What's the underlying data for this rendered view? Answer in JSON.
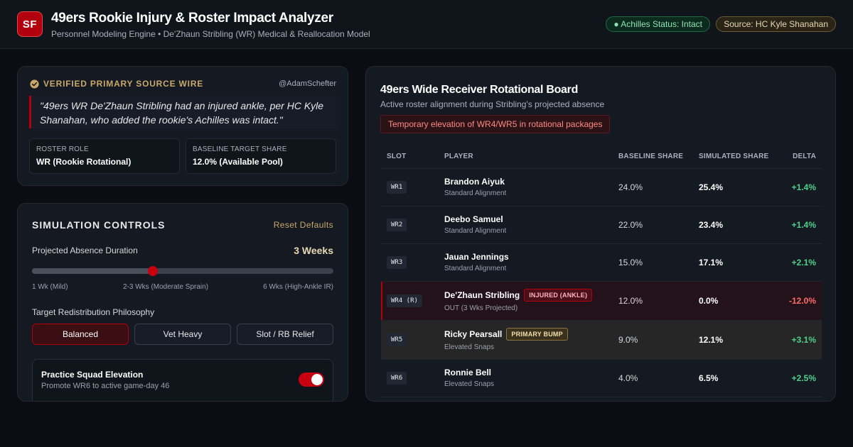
{
  "header": {
    "logo_text": "SF",
    "title": "49ers Rookie Injury & Roster Impact Analyzer",
    "subtitle": "Personnel Modeling Engine • De'Zhaun Stribling (WR) Medical & Reallocation Model",
    "status_pill": "● Achilles Status: Intact",
    "source_pill": "Source: HC Kyle Shanahan"
  },
  "wire": {
    "label": "VERIFIED PRIMARY SOURCE WIRE",
    "handle": "@AdamSchefter",
    "quote": "\"49ers WR De'Zhaun Stribling had an injured ankle, per HC Kyle Shanahan, who added the rookie's Achilles was intact.\"",
    "roster_role_label": "ROSTER ROLE",
    "roster_role_value": "WR (Rookie Rotational)",
    "target_share_label": "BASELINE TARGET SHARE",
    "target_share_value": "12.0% (Available Pool)"
  },
  "sim": {
    "title": "SIMULATION CONTROLS",
    "reset_label": "Reset Defaults",
    "duration_label": "Projected Absence Duration",
    "duration_value": "3 Weeks",
    "duration_weeks": 3,
    "duration_min": 1,
    "duration_max": 6,
    "tick_min": "1 Wk (Mild)",
    "tick_mid": "2-3 Wks (Moderate Sprain)",
    "tick_max": "6 Wks (High-Ankle IR)",
    "philosophy_label": "Target Redistribution Philosophy",
    "options": [
      "Balanced",
      "Vet Heavy",
      "Slot / RB Relief"
    ],
    "selected_option": "Balanced",
    "squad_title": "Practice Squad Elevation",
    "squad_desc": "Promote WR6 to active game-day 46",
    "squad_enabled": true
  },
  "board": {
    "title": "49ers Wide Receiver Rotational Board",
    "subtitle": "Active roster alignment during Stribling's projected absence",
    "alert": "Temporary elevation of WR4/WR5 in rotational packages",
    "columns": [
      "SLOT",
      "PLAYER",
      "BASELINE SHARE",
      "SIMULATED SHARE",
      "DELTA"
    ],
    "rows": [
      {
        "slot": "WR1",
        "player": "Brandon Aiyuk",
        "note": "Standard Alignment",
        "badge": "",
        "baseline": "24.0%",
        "simulated": "25.4%",
        "delta": "+1.4%"
      },
      {
        "slot": "WR2",
        "player": "Deebo Samuel",
        "note": "Standard Alignment",
        "badge": "",
        "baseline": "22.0%",
        "simulated": "23.4%",
        "delta": "+1.4%"
      },
      {
        "slot": "WR3",
        "player": "Jauan Jennings",
        "note": "Standard Alignment",
        "badge": "",
        "baseline": "15.0%",
        "simulated": "17.1%",
        "delta": "+2.1%"
      },
      {
        "slot": "WR4 (R)",
        "player": "De'Zhaun Stribling",
        "note": "OUT (3 Wks Projected)",
        "badge": "INJURED (ANKLE)",
        "baseline": "12.0%",
        "simulated": "0.0%",
        "delta": "-12.0%"
      },
      {
        "slot": "WR5",
        "player": "Ricky Pearsall",
        "note": "Elevated Snaps",
        "badge": "PRIMARY BUMP",
        "baseline": "9.0%",
        "simulated": "12.1%",
        "delta": "+3.1%"
      },
      {
        "slot": "WR6",
        "player": "Ronnie Bell",
        "note": "Elevated Snaps",
        "badge": "",
        "baseline": "4.0%",
        "simulated": "6.5%",
        "delta": "+2.5%"
      }
    ]
  },
  "colors": {
    "brand_red": "#b3000f",
    "gold": "#c9a86a",
    "positive": "#4fd08a",
    "negative": "#ff6b6b"
  }
}
